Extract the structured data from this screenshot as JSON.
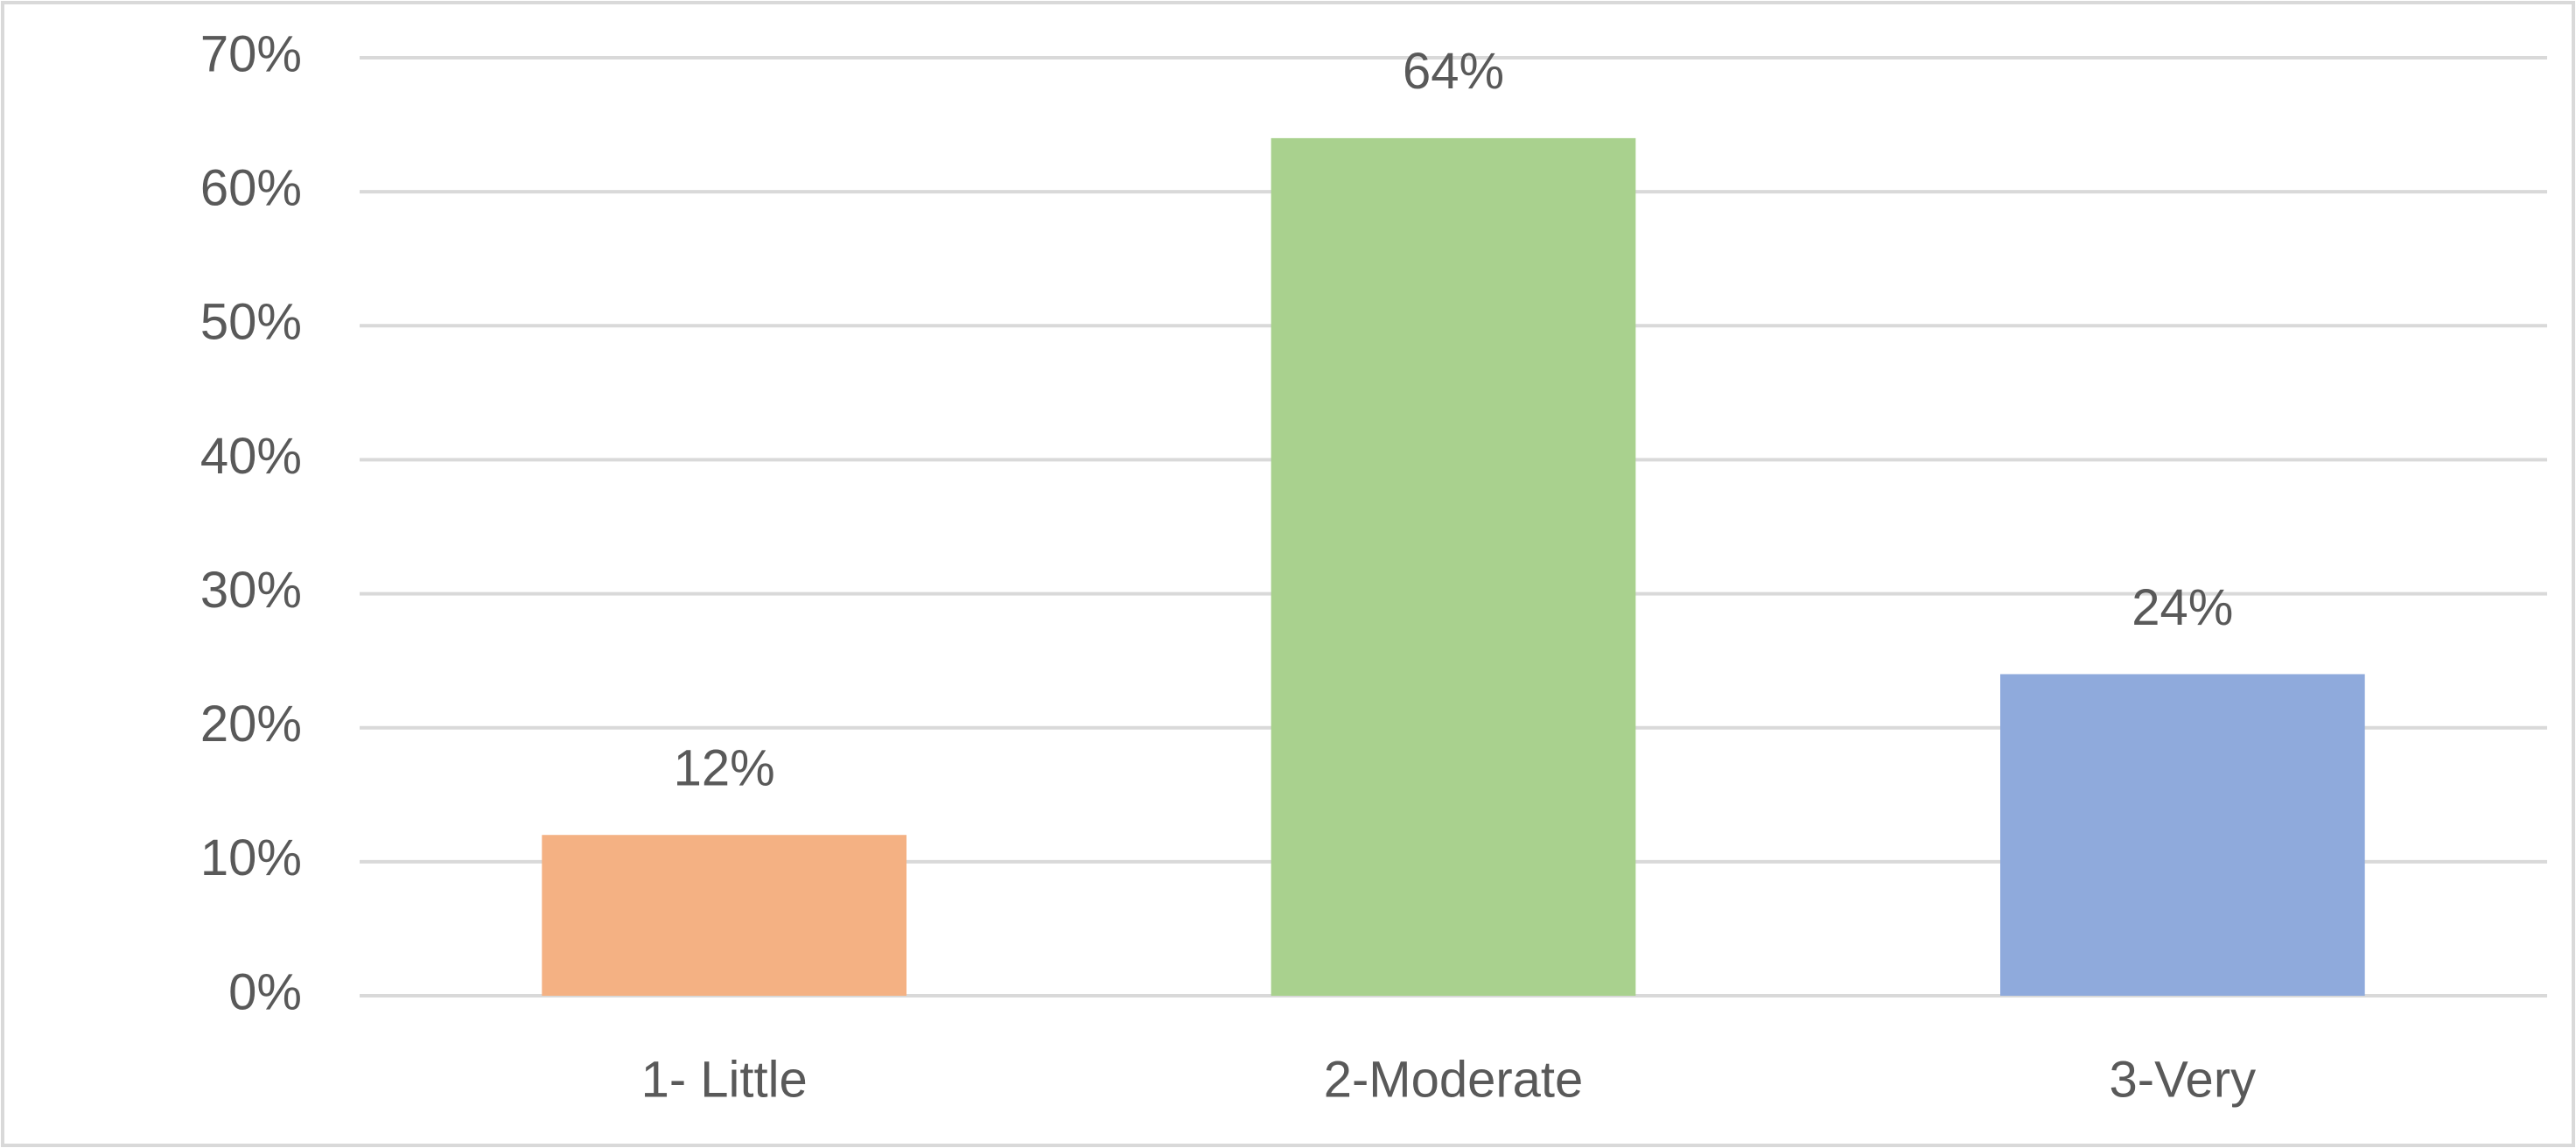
{
  "chart_data": {
    "type": "bar",
    "categories": [
      "1- Little",
      "2-Moderate",
      "3-Very"
    ],
    "values": [
      12,
      64,
      24
    ],
    "value_labels": [
      "12%",
      "64%",
      "24%"
    ],
    "colors": [
      "#f4b183",
      "#a9d18e",
      "#8faadc"
    ],
    "ylim": [
      0,
      70
    ],
    "yticks": [
      {
        "value": 0,
        "label": "0%"
      },
      {
        "value": 10,
        "label": "10%"
      },
      {
        "value": 20,
        "label": "20%"
      },
      {
        "value": 30,
        "label": "30%"
      },
      {
        "value": 40,
        "label": "40%"
      },
      {
        "value": 50,
        "label": "50%"
      },
      {
        "value": 60,
        "label": "60%"
      },
      {
        "value": 70,
        "label": "70%"
      }
    ],
    "grid": true
  }
}
